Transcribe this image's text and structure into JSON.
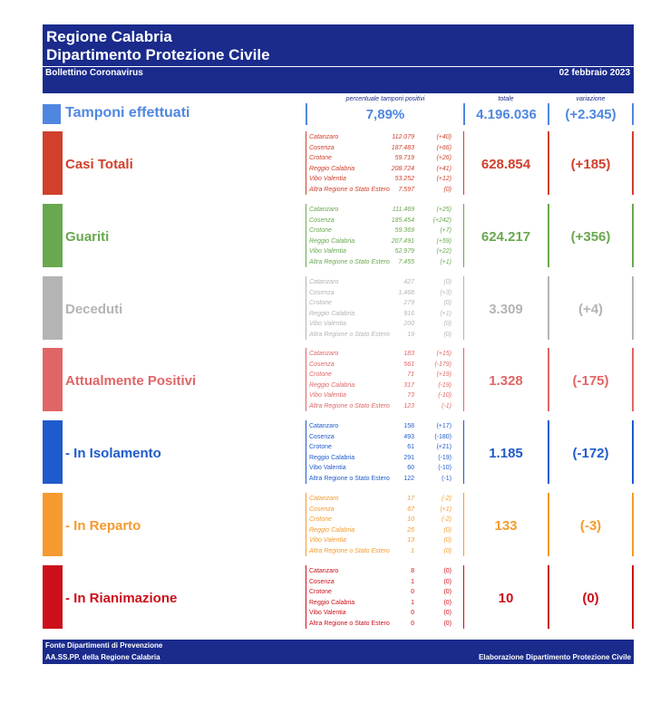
{
  "header": {
    "title_line1": "Regione Calabria",
    "title_line2": "Dipartimento Protezione Civile",
    "subtitle": "Bollettino Coronavirus",
    "date": "02 febbraio 2023",
    "color": "#1a2b8c"
  },
  "columns": {
    "percent_label": "percentuale tamponi positivi",
    "total_label": "totale",
    "variation_label": "variazione"
  },
  "tamponi": {
    "label": "Tamponi effettuati",
    "percent": "7,89%",
    "total": "4.196.036",
    "variation": "(+2.345)",
    "color": "#4f87e0"
  },
  "rows": [
    {
      "label": "Casi Totali",
      "color": "#d0402b",
      "total": "628.854",
      "variation": "(+185)",
      "items": [
        {
          "name": "Catanzaro",
          "value": "112.079",
          "var": "(+40)"
        },
        {
          "name": "Cosenza",
          "value": "187.483",
          "var": "(+66)"
        },
        {
          "name": "Crotone",
          "value": "59.719",
          "var": "(+26)"
        },
        {
          "name": "Reggio Calabria",
          "value": "208.724",
          "var": "(+41)"
        },
        {
          "name": "Vibo Valentia",
          "value": "53.252",
          "var": "(+12)"
        },
        {
          "name": "Altra Regione o Stato Estero",
          "value": "7.597",
          "var": "(0)"
        }
      ]
    },
    {
      "label": "Guariti",
      "color": "#69a84f",
      "total": "624.217",
      "variation": "(+356)",
      "items": [
        {
          "name": "Catanzaro",
          "value": "111.469",
          "var": "(+25)"
        },
        {
          "name": "Cosenza",
          "value": "185.454",
          "var": "(+242)"
        },
        {
          "name": "Crotone",
          "value": "59.369",
          "var": "(+7)"
        },
        {
          "name": "Reggio Calabria",
          "value": "207.491",
          "var": "(+59)"
        },
        {
          "name": "Vibo Valentia",
          "value": "52.979",
          "var": "(+22)"
        },
        {
          "name": "Altra Regione o Stato Estero",
          "value": "7.455",
          "var": "(+1)"
        }
      ]
    },
    {
      "label": "Deceduti",
      "color": "#b4b4b4",
      "total": "3.309",
      "variation": "(+4)",
      "items": [
        {
          "name": "Catanzaro",
          "value": "427",
          "var": "(0)"
        },
        {
          "name": "Cosenza",
          "value": "1.468",
          "var": "(+3)"
        },
        {
          "name": "Crotone",
          "value": "279",
          "var": "(0)"
        },
        {
          "name": "Reggio Calabria",
          "value": "916",
          "var": "(+1)"
        },
        {
          "name": "Vibo Valentia",
          "value": "200",
          "var": "(0)"
        },
        {
          "name": "Altra Regione o Stato Estero",
          "value": "19",
          "var": "(0)"
        }
      ]
    },
    {
      "label": "Attualmente Positivi",
      "color": "#e06666",
      "total": "1.328",
      "variation": "(-175)",
      "items": [
        {
          "name": "Catanzaro",
          "value": "183",
          "var": "(+15)"
        },
        {
          "name": "Cosenza",
          "value": "561",
          "var": "(-179)"
        },
        {
          "name": "Crotone",
          "value": "71",
          "var": "(+19)"
        },
        {
          "name": "Reggio Calabria",
          "value": "317",
          "var": "(-19)"
        },
        {
          "name": "Vibo Valentia",
          "value": "73",
          "var": "(-10)"
        },
        {
          "name": "Altra Regione o Stato Estero",
          "value": "123",
          "var": "(-1)"
        }
      ]
    },
    {
      "label": " - In Isolamento",
      "color": "#1f5bcc",
      "total": "1.185",
      "variation": "(-172)",
      "items": [
        {
          "name": "Catanzaro",
          "value": "158",
          "var": "(+17)"
        },
        {
          "name": "Cosenza",
          "value": "493",
          "var": "(-180)"
        },
        {
          "name": "Crotone",
          "value": "61",
          "var": "(+21)"
        },
        {
          "name": "Reggio Calabria",
          "value": "291",
          "var": "(-19)"
        },
        {
          "name": "Vibo Valentia",
          "value": "60",
          "var": "(-10)"
        },
        {
          "name": "Altra Regione o Stato Estero",
          "value": "122",
          "var": "(-1)"
        }
      ]
    },
    {
      "label": " - In Reparto",
      "color": "#f59a2f",
      "total": "133",
      "variation": "(-3)",
      "items": [
        {
          "name": "Catanzaro",
          "value": "17",
          "var": "(-2)"
        },
        {
          "name": "Cosenza",
          "value": "67",
          "var": "(+1)"
        },
        {
          "name": "Crotone",
          "value": "10",
          "var": "(-2)"
        },
        {
          "name": "Reggio Calabria",
          "value": "25",
          "var": "(0)"
        },
        {
          "name": "Vibo Valentia",
          "value": "13",
          "var": "(0)"
        },
        {
          "name": "Altra Regione o Stato Estero",
          "value": "1",
          "var": "(0)"
        }
      ]
    },
    {
      "label": " - In Rianimazione",
      "color": "#cc0f1a",
      "total": "10",
      "variation": "(0)",
      "items": [
        {
          "name": "Catanzaro",
          "value": "8",
          "var": "(0)"
        },
        {
          "name": "Cosenza",
          "value": "1",
          "var": "(0)"
        },
        {
          "name": "Crotone",
          "value": "0",
          "var": "(0)"
        },
        {
          "name": "Reggio Calabria",
          "value": "1",
          "var": "(0)"
        },
        {
          "name": "Vibo Valentia",
          "value": "0",
          "var": "(0)"
        },
        {
          "name": "Altra Regione o Stato Estero",
          "value": "0",
          "var": "(0)"
        }
      ]
    }
  ],
  "footer": {
    "line1": "Fonte Dipartimenti di Prevenzione",
    "line2": "AA.SS.PP.  della Regione Calabria",
    "right": "Elaborazione Dipartimento Protezione Civile"
  }
}
